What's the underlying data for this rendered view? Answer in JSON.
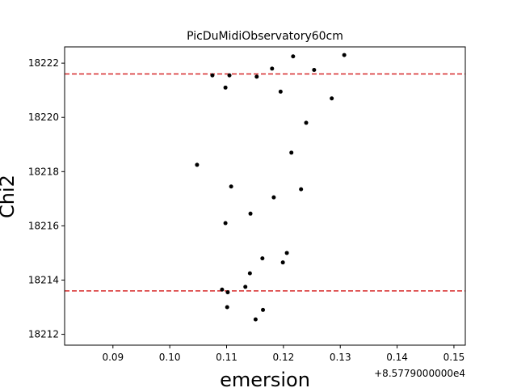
{
  "chart_data": {
    "type": "scatter",
    "title": "PicDuMidiObservatory60cm",
    "xlabel": "emersion",
    "ylabel": "Chi2",
    "x_offset_label": "+8.5779000000e4",
    "xlim": [
      0.0815,
      0.152
    ],
    "ylim": [
      18211.6,
      18222.6
    ],
    "x_ticks": [
      0.09,
      0.1,
      0.11,
      0.12,
      0.13,
      0.14,
      0.15
    ],
    "x_tick_labels": [
      "0.09",
      "0.10",
      "0.11",
      "0.12",
      "0.13",
      "0.14",
      "0.15"
    ],
    "y_ticks": [
      18212,
      18214,
      18216,
      18218,
      18220,
      18222
    ],
    "y_tick_labels": [
      "18212",
      "18214",
      "18216",
      "18218",
      "18220",
      "18222"
    ],
    "grid": false,
    "marker_color": "#000000",
    "reference_lines": [
      {
        "y": 18221.6,
        "color": "#d62728",
        "style": "dashed"
      },
      {
        "y": 18213.6,
        "color": "#d62728",
        "style": "dashed"
      }
    ],
    "points": [
      {
        "x": 0.1307,
        "y": 18222.3
      },
      {
        "x": 0.1217,
        "y": 18222.25
      },
      {
        "x": 0.1254,
        "y": 18221.75
      },
      {
        "x": 0.118,
        "y": 18221.8
      },
      {
        "x": 0.1075,
        "y": 18221.55
      },
      {
        "x": 0.1105,
        "y": 18221.55
      },
      {
        "x": 0.1153,
        "y": 18221.5
      },
      {
        "x": 0.1098,
        "y": 18221.1
      },
      {
        "x": 0.1195,
        "y": 18220.95
      },
      {
        "x": 0.1285,
        "y": 18220.7
      },
      {
        "x": 0.124,
        "y": 18219.8
      },
      {
        "x": 0.1214,
        "y": 18218.7
      },
      {
        "x": 0.1048,
        "y": 18218.25
      },
      {
        "x": 0.1108,
        "y": 18217.45
      },
      {
        "x": 0.1231,
        "y": 18217.35
      },
      {
        "x": 0.1183,
        "y": 18217.05
      },
      {
        "x": 0.1142,
        "y": 18216.45
      },
      {
        "x": 0.1098,
        "y": 18216.1
      },
      {
        "x": 0.1206,
        "y": 18215.0
      },
      {
        "x": 0.1163,
        "y": 18214.8
      },
      {
        "x": 0.1199,
        "y": 18214.65
      },
      {
        "x": 0.1141,
        "y": 18214.25
      },
      {
        "x": 0.1133,
        "y": 18213.75
      },
      {
        "x": 0.1092,
        "y": 18213.65
      },
      {
        "x": 0.1102,
        "y": 18213.55
      },
      {
        "x": 0.1101,
        "y": 18213.0
      },
      {
        "x": 0.1164,
        "y": 18212.9
      },
      {
        "x": 0.1151,
        "y": 18212.55
      }
    ]
  }
}
